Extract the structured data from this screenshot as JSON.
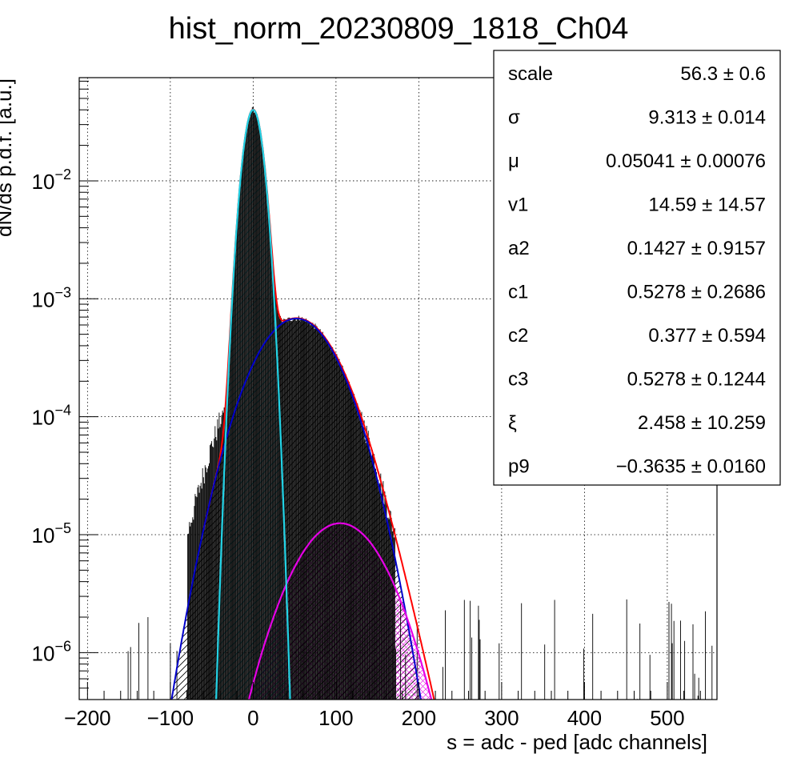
{
  "chart_data": {
    "type": "histogram-fit",
    "title": "hist_norm_20230809_1818_Ch04",
    "xlabel": "s = adc - ped [adc channels]",
    "ylabel": "dN/ds p.d.f. [a.u.]",
    "xlim": [
      -210,
      560
    ],
    "ylim": [
      4e-07,
      0.075
    ],
    "yscale": "log",
    "grid": true,
    "x_ticks": [
      -200,
      -100,
      0,
      100,
      200,
      300,
      400,
      500
    ],
    "x_tick_labels": [
      "−200",
      "−100",
      "0",
      "100",
      "200",
      "300",
      "400",
      "500"
    ],
    "y_ticks": [
      1e-06,
      1e-05,
      0.0001,
      0.001,
      0.01
    ],
    "y_tick_labels": [
      {
        "base": "10",
        "exp": "−6"
      },
      {
        "base": "10",
        "exp": "−5"
      },
      {
        "base": "10",
        "exp": "−4"
      },
      {
        "base": "10",
        "exp": "−3"
      },
      {
        "base": "10",
        "exp": "−2"
      }
    ],
    "components": [
      {
        "kind": "pedestal",
        "color": "#22d3e6",
        "peak": 0,
        "height": 0.04,
        "sigma": 9.3
      },
      {
        "kind": "single-pe",
        "color": "#0000cc",
        "peak": 52,
        "height": 0.00068,
        "sigma": 39
      },
      {
        "kind": "double-pe",
        "color": "#e600e6",
        "peak": 105,
        "height": 1.25e-05,
        "sigma": 42
      },
      {
        "kind": "total-fit",
        "color": "#ff0000"
      }
    ],
    "histogram_color": "#000000",
    "legend_position": "top-right"
  },
  "stats": [
    {
      "label": "scale",
      "value": "56.3 ± 0.6"
    },
    {
      "label": "σ",
      "value": "9.313 ± 0.014"
    },
    {
      "label": "μ",
      "value": "0.05041 ± 0.00076"
    },
    {
      "label": "v1",
      "value": "14.59 ± 14.57"
    },
    {
      "label": "a2",
      "value": "0.1427 ± 0.9157"
    },
    {
      "label": "c1",
      "value": "0.5278 ± 0.2686"
    },
    {
      "label": "c2",
      "value": "0.377 ± 0.594"
    },
    {
      "label": "c3",
      "value": "0.5278 ± 0.1244"
    },
    {
      "label": "ξ",
      "value": "2.458 ± 10.259"
    },
    {
      "label": "p9",
      "value": "−0.3635 ± 0.0160"
    }
  ]
}
